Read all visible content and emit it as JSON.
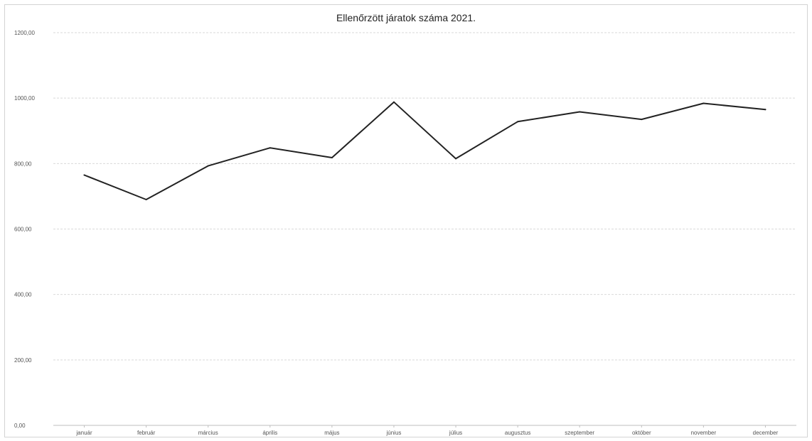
{
  "chart_data": {
    "type": "line",
    "title": "Ellenőrzött járatok száma 2021.",
    "xlabel": "",
    "ylabel": "",
    "categories": [
      "január",
      "február",
      "március",
      "április",
      "május",
      "június",
      "július",
      "augusztus",
      "szeptember",
      "október",
      "november",
      "december"
    ],
    "series": [
      {
        "values": [
          765,
          690,
          793,
          848,
          818,
          988,
          815,
          928,
          958,
          935,
          984,
          965
        ]
      }
    ],
    "ylim": [
      0,
      1200
    ],
    "y_ticks": [
      "0,00",
      "200,00",
      "400,00",
      "600,00",
      "800,00",
      "1000,00",
      "1200,00"
    ],
    "grid": true,
    "legend": "none",
    "colors": {
      "line": "#222222",
      "grid": "#d9d9d9",
      "axis": "#bfbfbf"
    }
  }
}
